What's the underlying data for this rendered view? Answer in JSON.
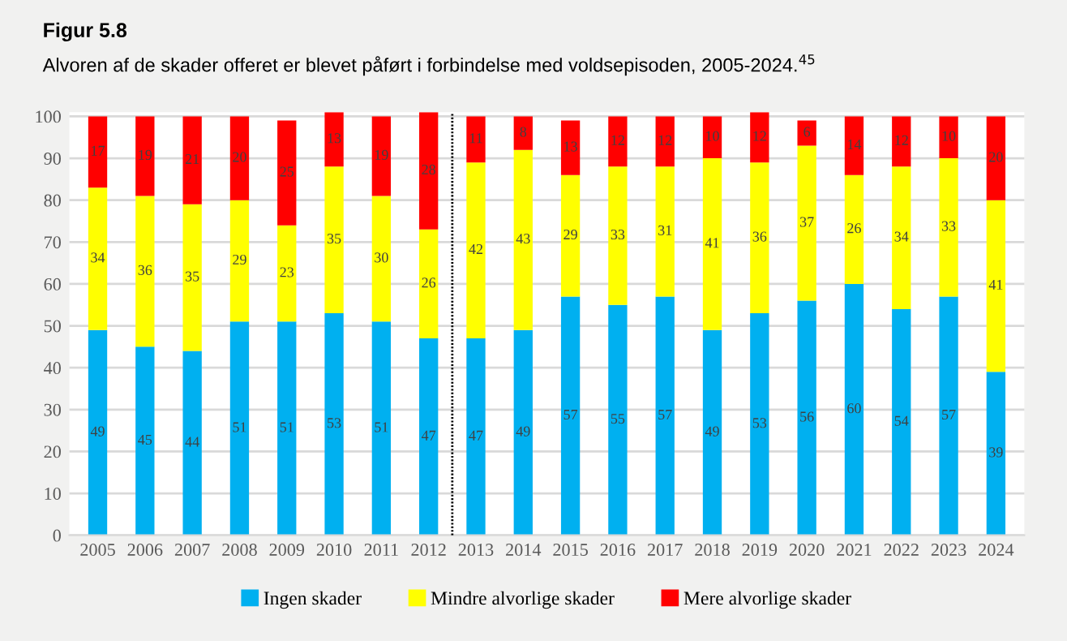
{
  "chart_data": {
    "type": "bar",
    "title": "Figur 5.8",
    "subtitle": "Alvoren af de skader offeret er blevet påført i forbindelse med voldsepisoden, 2005-2024.$^{45}$",
    "categories": [
      "2005",
      "2006",
      "2007",
      "2008",
      "2009",
      "2010",
      "2011",
      "2012",
      "2013",
      "2014",
      "2015",
      "2016",
      "2017",
      "2018",
      "2019",
      "2020",
      "2021",
      "2022",
      "2023",
      "2024"
    ],
    "stacked": true,
    "data_labels": true,
    "grid": "y",
    "legend": "bottom",
    "series": [
      {
        "name": "Ingen skader",
        "color": "#00b0f0",
        "values": [
          49,
          45,
          44,
          51,
          51,
          53,
          51,
          47,
          47,
          49,
          57,
          55,
          57,
          49,
          53,
          56,
          60,
          54,
          57,
          39
        ]
      },
      {
        "name": "Mindre alvorlige skader",
        "color": "#ffff00",
        "values": [
          34,
          36,
          35,
          29,
          23,
          35,
          30,
          26,
          42,
          43,
          29,
          33,
          31,
          41,
          36,
          37,
          26,
          34,
          33,
          41
        ]
      },
      {
        "name": "Mere alvorlige skader",
        "color": "#ff0000",
        "values": [
          17,
          19,
          21,
          20,
          25,
          13,
          19,
          28,
          11,
          8,
          13,
          12,
          12,
          10,
          12,
          6,
          14,
          12,
          10,
          20
        ]
      }
    ],
    "ylim": [
      0,
      101
    ],
    "yticks": [
      0,
      10,
      20,
      30,
      40,
      50,
      60,
      70,
      80,
      90,
      100
    ]
  }
}
